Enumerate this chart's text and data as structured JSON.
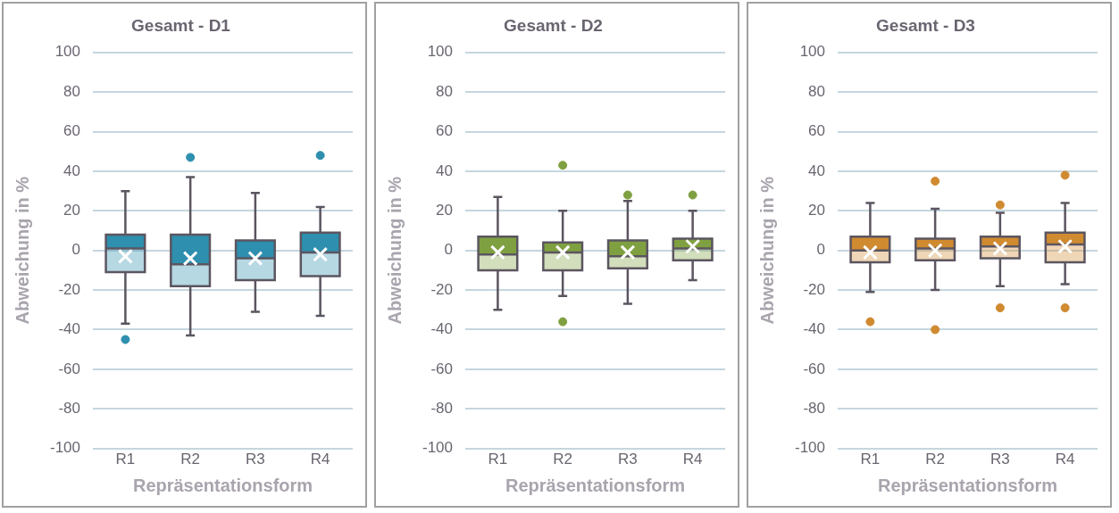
{
  "chart_data": [
    {
      "type": "box",
      "title": "Gesamt - D1",
      "xlabel": "Repräsentationsform",
      "ylabel": "Abweichung in %",
      "categories": [
        "R1",
        "R2",
        "R3",
        "R4"
      ],
      "color": "#2e8fae",
      "ylim": [
        -100,
        100
      ],
      "yticks": [
        -100,
        -80,
        -60,
        -40,
        -20,
        0,
        20,
        40,
        60,
        80,
        100
      ],
      "grid": "y",
      "boxes": [
        {
          "low": -37,
          "q1": -11,
          "median": 1,
          "q3": 8,
          "high": 30,
          "mean": -3,
          "outliers": [
            -45
          ]
        },
        {
          "low": -43,
          "q1": -18,
          "median": -7,
          "q3": 8,
          "high": 37,
          "mean": -4,
          "outliers": [
            47
          ]
        },
        {
          "low": -31,
          "q1": -15,
          "median": -4,
          "q3": 5,
          "high": 29,
          "mean": -4
        },
        {
          "low": -33,
          "q1": -13,
          "median": -1,
          "q3": 9,
          "high": 22,
          "mean": -2,
          "outliers": [
            48
          ]
        }
      ]
    },
    {
      "type": "box",
      "title": "Gesamt - D2",
      "xlabel": "Repräsentationsform",
      "ylabel": "Abweichung in %",
      "categories": [
        "R1",
        "R2",
        "R3",
        "R4"
      ],
      "color": "#7fa040",
      "ylim": [
        -100,
        100
      ],
      "yticks": [
        -100,
        -80,
        -60,
        -40,
        -20,
        0,
        20,
        40,
        60,
        80,
        100
      ],
      "grid": "y",
      "boxes": [
        {
          "low": -30,
          "q1": -10,
          "median": -2,
          "q3": 7,
          "high": 27,
          "mean": -1
        },
        {
          "low": -23,
          "q1": -10,
          "median": -1,
          "q3": 4,
          "high": 20,
          "mean": -1,
          "outliers": [
            43,
            -36
          ]
        },
        {
          "low": -27,
          "q1": -9,
          "median": -3,
          "q3": 5,
          "high": 25,
          "mean": -1,
          "outliers": [
            28
          ]
        },
        {
          "low": -15,
          "q1": -5,
          "median": 1,
          "q3": 6,
          "high": 20,
          "mean": 2,
          "outliers": [
            28
          ]
        }
      ]
    },
    {
      "type": "box",
      "title": "Gesamt - D3",
      "xlabel": "Repräsentationsform",
      "ylabel": "Abweichung in %",
      "categories": [
        "R1",
        "R2",
        "R3",
        "R4"
      ],
      "color": "#d08a30",
      "ylim": [
        -100,
        100
      ],
      "yticks": [
        -100,
        -80,
        -60,
        -40,
        -20,
        0,
        20,
        40,
        60,
        80,
        100
      ],
      "grid": "y",
      "boxes": [
        {
          "low": -21,
          "q1": -6,
          "median": 0,
          "q3": 7,
          "high": 24,
          "mean": -1,
          "outliers": [
            -36
          ]
        },
        {
          "low": -20,
          "q1": -5,
          "median": 1,
          "q3": 6,
          "high": 21,
          "mean": 0,
          "outliers": [
            35,
            -40
          ]
        },
        {
          "low": -18,
          "q1": -4,
          "median": 2,
          "q3": 7,
          "high": 19,
          "mean": 1,
          "outliers": [
            23,
            -29
          ]
        },
        {
          "low": -17,
          "q1": -6,
          "median": 3,
          "q3": 9,
          "high": 24,
          "mean": 2,
          "outliers": [
            38,
            -29
          ]
        }
      ]
    }
  ]
}
